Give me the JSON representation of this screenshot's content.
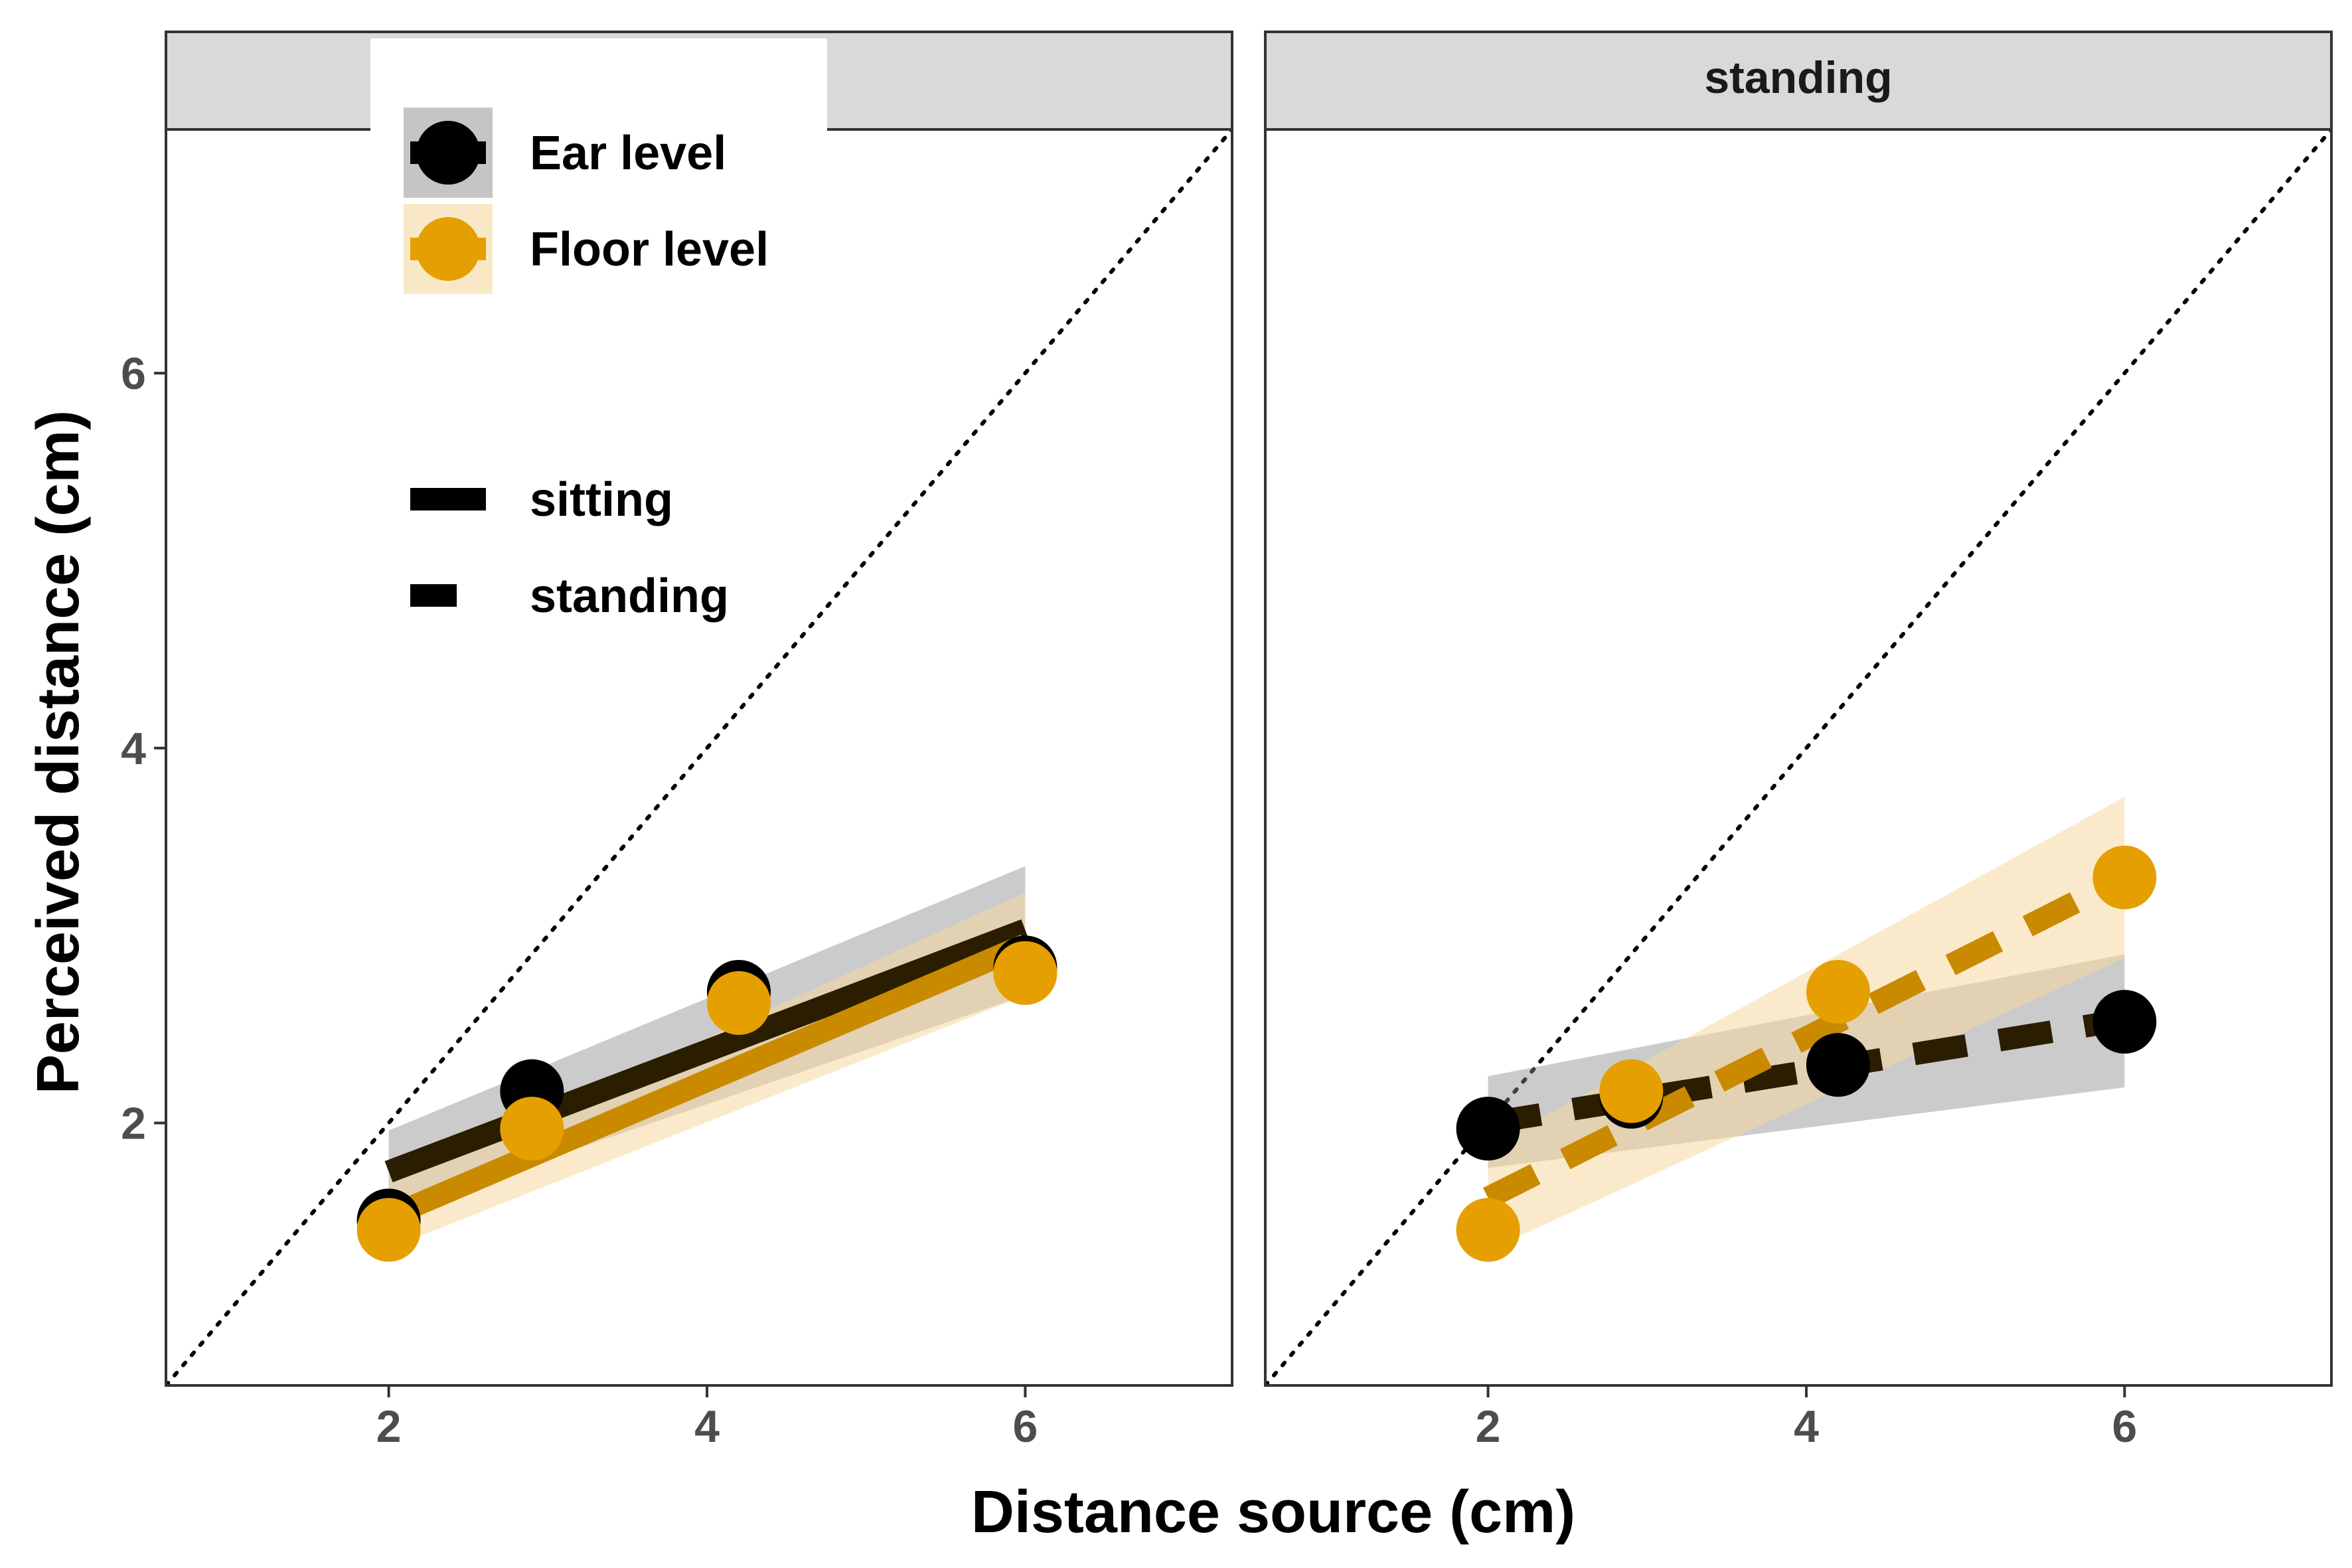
{
  "chart_data": {
    "type": "scatter",
    "xlabel": "Distance source (cm)",
    "ylabel": "Perceived distance (cm)",
    "xlim": [
      0.6,
      7.3
    ],
    "ylim": [
      0.6,
      7.3
    ],
    "x_ticks": [
      2,
      4,
      6
    ],
    "y_ticks": [
      2,
      4,
      6
    ],
    "grid": false,
    "reference_line": "identity (y = x), dotted",
    "legend_placement": "top-left (inside left panel)",
    "colors": {
      "ear_level": "#000000",
      "floor_level": "#E69F00",
      "ear_band": "#8c8c8c",
      "floor_band": "#F5D9A0"
    },
    "legend": {
      "color": [
        {
          "key": "ear",
          "label": "Ear level"
        },
        {
          "key": "floor",
          "label": "Floor level"
        }
      ],
      "linetype": [
        {
          "key": "sitting",
          "label": "sitting"
        },
        {
          "key": "standing",
          "label": "standing"
        }
      ]
    },
    "panels": [
      {
        "strip": "",
        "linetype": "solid",
        "series": [
          {
            "key": "ear",
            "points": [
              [
                2.0,
                1.48
              ],
              [
                2.9,
                2.17
              ],
              [
                4.2,
                2.7
              ],
              [
                6.0,
                2.83
              ]
            ],
            "fit": [
              [
                2.0,
                1.74
              ],
              [
                6.0,
                3.03
              ]
            ],
            "band_low": [
              1.52,
              2.68
            ],
            "band_high": [
              1.96,
              3.37
            ]
          },
          {
            "key": "floor",
            "points": [
              [
                2.0,
                1.43
              ],
              [
                2.9,
                1.97
              ],
              [
                4.2,
                2.64
              ],
              [
                6.0,
                2.8
              ]
            ],
            "fit": [
              [
                2.0,
                1.5
              ],
              [
                6.0,
                2.95
              ]
            ],
            "band_low": [
              1.33,
              2.68
            ],
            "band_high": [
              1.68,
              3.23
            ]
          }
        ]
      },
      {
        "strip": "standing",
        "linetype": "dashed",
        "series": [
          {
            "key": "ear",
            "points": [
              [
                2.0,
                1.97
              ],
              [
                2.9,
                2.14
              ],
              [
                4.2,
                2.31
              ],
              [
                6.0,
                2.54
              ]
            ],
            "fit": [
              [
                2.0,
                2.0
              ],
              [
                6.0,
                2.55
              ]
            ],
            "band_low": [
              1.76,
              2.19
            ],
            "band_high": [
              2.25,
              2.9
            ]
          },
          {
            "key": "floor",
            "points": [
              [
                2.0,
                1.43
              ],
              [
                2.9,
                2.17
              ],
              [
                4.2,
                2.7
              ],
              [
                6.0,
                3.31
              ]
            ],
            "fit": [
              [
                2.0,
                1.6
              ],
              [
                6.0,
                3.31
              ]
            ],
            "band_low": [
              1.32,
              2.88
            ],
            "band_high": [
              1.87,
              3.74
            ]
          }
        ]
      }
    ]
  }
}
